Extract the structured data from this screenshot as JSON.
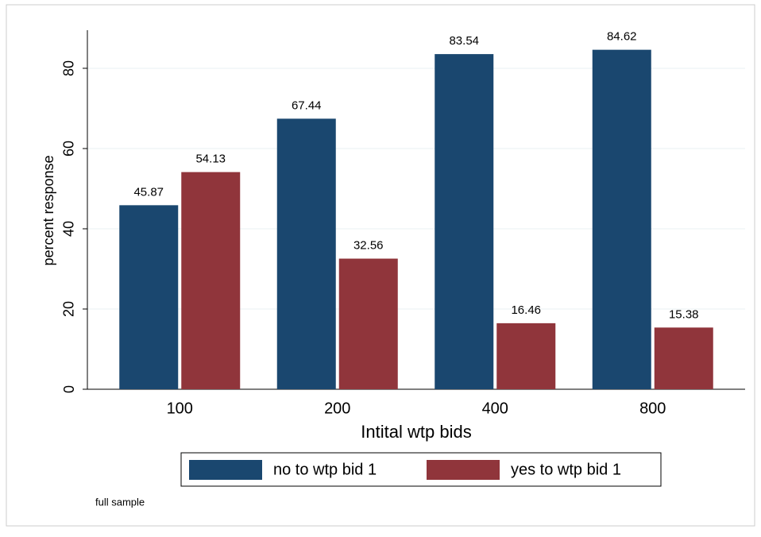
{
  "chart_data": {
    "type": "bar",
    "x_label": "Intital wtp bids",
    "y_label": "percent response",
    "categories": [
      "100",
      "200",
      "400",
      "800"
    ],
    "series": [
      {
        "name": "no to wtp bid 1",
        "color": "#1a476f",
        "values": [
          45.87,
          67.44,
          83.54,
          84.62
        ]
      },
      {
        "name": "yes to wtp bid 1",
        "color": "#90353b",
        "values": [
          54.13,
          32.56,
          16.46,
          15.38
        ]
      }
    ],
    "ylim": [
      0,
      89.5
    ],
    "yticks": [
      0,
      20,
      40,
      60,
      80
    ],
    "grid": true,
    "legend": "bottom",
    "note": "full sample"
  }
}
